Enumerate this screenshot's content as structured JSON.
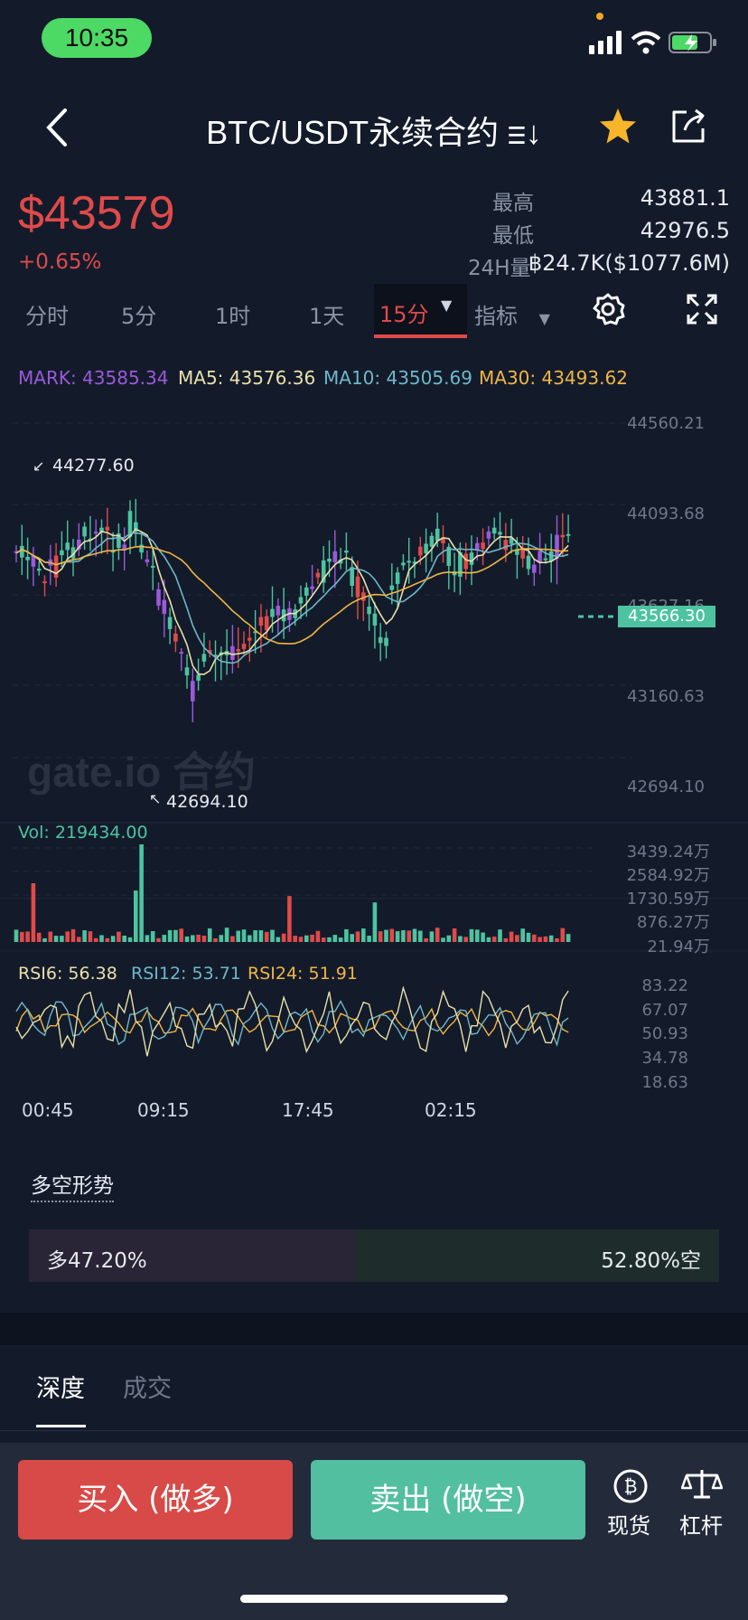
{
  "status_bar": {
    "time": "10:35"
  },
  "header": {
    "title": "BTC/USDT永续合约 ⲷ↓"
  },
  "ticker": {
    "price": "$43579",
    "change": "+0.65%",
    "high_label": "最高",
    "high": "43881.1",
    "low_label": "最低",
    "low": "42976.5",
    "vol_label": "24H量",
    "vol": "฿24.7K($1077.6M)"
  },
  "tabs": {
    "items": [
      "分时",
      "5分",
      "1时",
      "1天"
    ],
    "active": "15分",
    "indicators": "指标"
  },
  "indicators": {
    "mark": "MARK: 43585.34",
    "ma5": "MA5: 43576.36",
    "ma10": "MA10: 43505.69",
    "ma30": "MA30: 43493.62"
  },
  "colors": {
    "up": "#4dc3a0",
    "down": "#e04a4a",
    "mark": "#9b59d9",
    "ma5": "#e8e0a8",
    "ma10": "#6fb7c9",
    "ma30": "#f0b544"
  },
  "chart_data": {
    "type": "candlestick",
    "price_axis": [
      "44560.21",
      "44093.68",
      "43627.16",
      "43160.63",
      "42694.10"
    ],
    "current_price": "43566.30",
    "high_marker": "44277.60",
    "low_marker": "42694.10",
    "x_ticks": [
      "00:45",
      "09:15",
      "17:45",
      "02:15"
    ],
    "watermark": "gate.io 合约",
    "volume": {
      "label": "Vol: 219434.00",
      "axis": [
        "3439.24万",
        "2584.92万",
        "1730.59万",
        "876.27万",
        "21.94万"
      ]
    },
    "rsi": {
      "rsi6": "RSI6: 56.38",
      "rsi12": "RSI12: 53.71",
      "rsi24": "RSI24: 51.91",
      "axis": [
        "83.22",
        "67.07",
        "50.93",
        "34.78",
        "18.63"
      ]
    }
  },
  "sentiment": {
    "title": "多空形势",
    "long": "多47.20%",
    "short": "52.80%空",
    "long_pct": 47.2
  },
  "tabs2": {
    "depth": "深度",
    "trades": "成交"
  },
  "actions": {
    "buy": "买入 (做多)",
    "sell": "卖出 (做空)",
    "spot": "现货",
    "margin": "杠杆"
  }
}
